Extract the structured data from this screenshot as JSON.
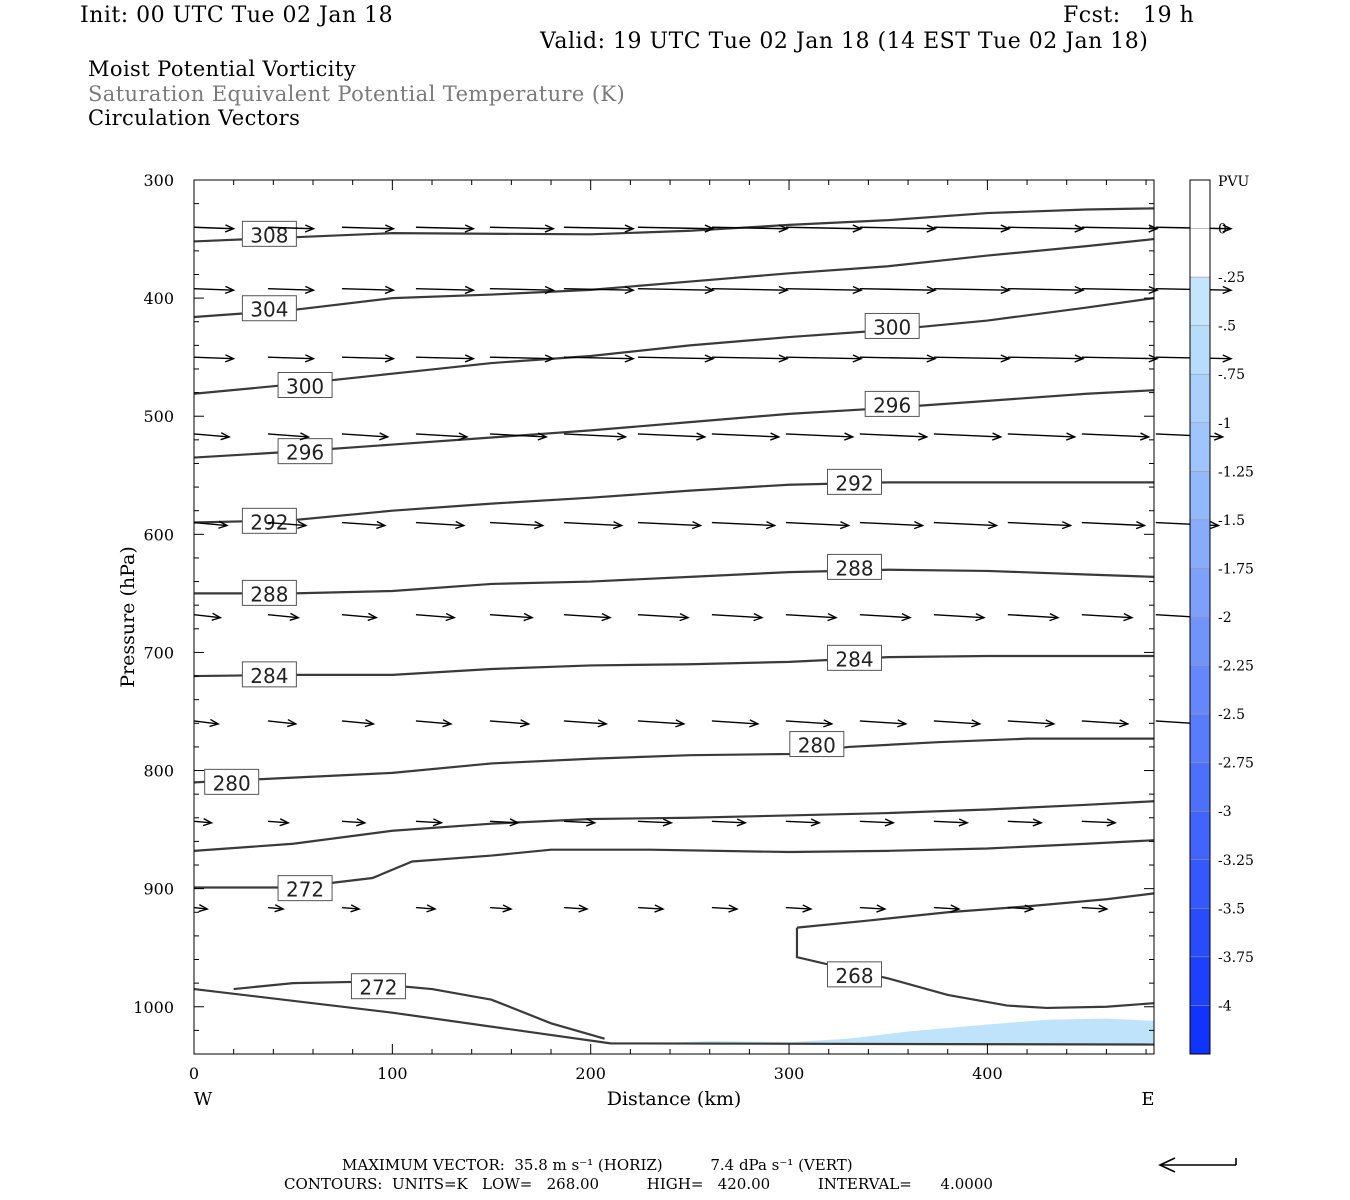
{
  "header": {
    "init": "Init: 00 UTC Tue 02 Jan 18",
    "fcst": "Fcst:   19 h",
    "valid": "Valid: 19 UTC Tue 02 Jan 18 (14 EST Tue 02 Jan 18)",
    "fields": [
      "Moist Potential Vorticity",
      "Saturation Equivalent Potential Temperature (K)",
      "Circulation Vectors"
    ]
  },
  "footer": {
    "max_vector": "MAXIMUM VECTOR:  35.8 m s⁻¹ (HORIZ)          7.4 dPa s⁻¹ (VERT)",
    "contours": "CONTOURS:  UNITS=K   LOW=   268.00          HIGH=   420.00          INTERVAL=      4.0000"
  },
  "colors": {
    "contour": "#3a3a3a",
    "vector": "#000000",
    "shading": "#bfe3fb"
  },
  "chart_data": {
    "type": "cross-section",
    "xlabel": "Distance (km)",
    "ylabel": "Pressure (hPa)",
    "xlim": [
      0,
      484
    ],
    "ylim": [
      300,
      1040
    ],
    "x_ticks": [
      0,
      100,
      200,
      300,
      400
    ],
    "x_tick_labels": [
      "0",
      "100",
      "200",
      "300",
      "400"
    ],
    "y_ticks": [
      300,
      400,
      500,
      600,
      700,
      800,
      900,
      1000
    ],
    "y_tick_labels": [
      "300",
      "400",
      "500",
      "600",
      "700",
      "800",
      "900",
      "1000"
    ],
    "west_label": "W",
    "east_label": "E",
    "colorbar": {
      "unit": "PVU",
      "labels": [
        "0",
        "-.25",
        "-.5",
        "-.75",
        "-1",
        "-1.25",
        "-1.5",
        "-1.75",
        "-2",
        "-2.25",
        "-2.5",
        "-2.75",
        "-3",
        "-3.25",
        "-3.5",
        "-3.75",
        "-4"
      ],
      "colors": [
        "#ffffff",
        "#ffffff",
        "#c4e6fc",
        "#b8dcfc",
        "#acd0fc",
        "#a0c4fc",
        "#94b8fc",
        "#88acfc",
        "#7ca0fc",
        "#7094fc",
        "#6488fc",
        "#587cfc",
        "#4c70fc",
        "#4064fc",
        "#3458fc",
        "#284cfc",
        "#1c40fc",
        "#1034fc"
      ]
    },
    "contours": [
      {
        "label": "308",
        "label_at": [
          38,
          346
        ],
        "points": [
          [
            0,
            352
          ],
          [
            100,
            345
          ],
          [
            200,
            346
          ],
          [
            250,
            343
          ],
          [
            300,
            338
          ],
          [
            350,
            334
          ],
          [
            400,
            328
          ],
          [
            450,
            325
          ],
          [
            484,
            324
          ]
        ]
      },
      {
        "label": "",
        "label_at": null,
        "points": [
          [
            0,
            416
          ],
          [
            50,
            410
          ],
          [
            100,
            400
          ],
          [
            150,
            397
          ],
          [
            200,
            393
          ],
          [
            250,
            386
          ],
          [
            300,
            379
          ],
          [
            350,
            373
          ],
          [
            400,
            364
          ],
          [
            450,
            356
          ],
          [
            484,
            350
          ]
        ]
      },
      {
        "label": "304",
        "label_at": [
          38,
          409
        ],
        "points": []
      },
      {
        "label": "300",
        "label_at": [
          352,
          424
        ],
        "points": [
          [
            0,
            481
          ],
          [
            50,
            473
          ],
          [
            100,
            464
          ],
          [
            150,
            455
          ],
          [
            200,
            449
          ],
          [
            250,
            440
          ],
          [
            300,
            433
          ],
          [
            350,
            427
          ],
          [
            400,
            419
          ],
          [
            450,
            408
          ],
          [
            484,
            400
          ]
        ]
      },
      {
        "label": "300",
        "label_at": [
          56,
          474
        ],
        "points": []
      },
      {
        "label": "296",
        "label_at": [
          352,
          490
        ],
        "points": [
          [
            0,
            535
          ],
          [
            50,
            530
          ],
          [
            100,
            524
          ],
          [
            150,
            518
          ],
          [
            200,
            512
          ],
          [
            250,
            505
          ],
          [
            300,
            498
          ],
          [
            350,
            493
          ],
          [
            400,
            487
          ],
          [
            450,
            481
          ],
          [
            484,
            478
          ]
        ]
      },
      {
        "label": "296",
        "label_at": [
          56,
          530
        ],
        "points": []
      },
      {
        "label": "292",
        "label_at": [
          333,
          556
        ],
        "points": [
          [
            0,
            590
          ],
          [
            50,
            588
          ],
          [
            100,
            580
          ],
          [
            150,
            574
          ],
          [
            200,
            569
          ],
          [
            250,
            563
          ],
          [
            300,
            558
          ],
          [
            350,
            556
          ],
          [
            400,
            556
          ],
          [
            450,
            556
          ],
          [
            484,
            556
          ]
        ]
      },
      {
        "label": "292",
        "label_at": [
          38,
          589
        ],
        "points": []
      },
      {
        "label": "288",
        "label_at": [
          333,
          628
        ],
        "points": [
          [
            0,
            650
          ],
          [
            50,
            650
          ],
          [
            100,
            648
          ],
          [
            150,
            642
          ],
          [
            200,
            640
          ],
          [
            250,
            636
          ],
          [
            300,
            632
          ],
          [
            350,
            630
          ],
          [
            400,
            631
          ],
          [
            450,
            634
          ],
          [
            484,
            636
          ]
        ]
      },
      {
        "label": "288",
        "label_at": [
          38,
          650
        ],
        "points": []
      },
      {
        "label": "284",
        "label_at": [
          333,
          705
        ],
        "points": [
          [
            0,
            720
          ],
          [
            50,
            719
          ],
          [
            100,
            719
          ],
          [
            150,
            714
          ],
          [
            200,
            711
          ],
          [
            250,
            710
          ],
          [
            300,
            708
          ],
          [
            350,
            704
          ],
          [
            400,
            703
          ],
          [
            450,
            703
          ],
          [
            484,
            703
          ]
        ]
      },
      {
        "label": "284",
        "label_at": [
          38,
          719
        ],
        "points": []
      },
      {
        "label": "280",
        "label_at": [
          314,
          778
        ],
        "points": [
          [
            0,
            810
          ],
          [
            50,
            806
          ],
          [
            100,
            802
          ],
          [
            150,
            794
          ],
          [
            200,
            790
          ],
          [
            250,
            787
          ],
          [
            300,
            786
          ],
          [
            330,
            780
          ],
          [
            375,
            776
          ],
          [
            420,
            773
          ],
          [
            484,
            773
          ]
        ]
      },
      {
        "label": "280",
        "label_at": [
          19,
          810
        ],
        "points": []
      },
      {
        "label": "",
        "label_at": null,
        "points": [
          [
            0,
            868
          ],
          [
            50,
            862
          ],
          [
            100,
            851
          ],
          [
            150,
            845
          ],
          [
            200,
            841
          ],
          [
            250,
            840
          ],
          [
            300,
            838
          ],
          [
            350,
            836
          ],
          [
            400,
            833
          ],
          [
            450,
            829
          ],
          [
            484,
            826
          ]
        ]
      },
      {
        "label": "272",
        "label_at": [
          56,
          900
        ],
        "points": [
          [
            0,
            899
          ],
          [
            50,
            899
          ],
          [
            90,
            891
          ],
          [
            110,
            877
          ],
          [
            150,
            872
          ],
          [
            180,
            867
          ],
          [
            230,
            867
          ],
          [
            300,
            869
          ],
          [
            350,
            868
          ],
          [
            400,
            866
          ],
          [
            450,
            862
          ],
          [
            484,
            859
          ]
        ]
      },
      {
        "label": "268",
        "label_at": [
          333,
          973
        ],
        "points": [
          [
            304,
            933
          ],
          [
            304,
            958
          ],
          [
            350,
            976
          ],
          [
            380,
            990
          ],
          [
            410,
            999
          ],
          [
            430,
            1001
          ],
          [
            460,
            1000
          ],
          [
            484,
            997
          ]
        ]
      },
      {
        "label": "",
        "label_at": null,
        "points": [
          [
            304,
            933
          ],
          [
            340,
            927
          ],
          [
            380,
            920
          ],
          [
            420,
            915
          ],
          [
            460,
            909
          ],
          [
            484,
            904
          ]
        ]
      },
      {
        "label": "272",
        "label_at": [
          93,
          983
        ],
        "points": [
          [
            20,
            985
          ],
          [
            50,
            980
          ],
          [
            80,
            979
          ],
          [
            120,
            985
          ],
          [
            150,
            994
          ],
          [
            180,
            1014
          ],
          [
            207,
            1027
          ]
        ]
      },
      {
        "label": "",
        "label_at": null,
        "points": [
          [
            0,
            985
          ],
          [
            100,
            1005
          ],
          [
            210,
            1031
          ],
          [
            484,
            1032
          ]
        ]
      }
    ],
    "shaded_region": {
      "pv": "-0.25 to -0.5",
      "points": [
        [
          232,
          1031
        ],
        [
          260,
          1029
        ],
        [
          300,
          1030
        ],
        [
          330,
          1027
        ],
        [
          360,
          1021
        ],
        [
          400,
          1015
        ],
        [
          430,
          1011
        ],
        [
          460,
          1010
        ],
        [
          484,
          1012
        ],
        [
          484,
          1032
        ],
        [
          232,
          1032
        ]
      ]
    },
    "vector_rows": [
      {
        "p": 340,
        "dx": 18,
        "dy": 1
      },
      {
        "p": 392,
        "dx": 18,
        "dy": 1
      },
      {
        "p": 450,
        "dx": 18,
        "dy": 1
      },
      {
        "p": 515,
        "dx": 16,
        "dy": 2
      },
      {
        "p": 590,
        "dx": 15,
        "dy": 2
      },
      {
        "p": 668,
        "dx": 12,
        "dy": 2
      },
      {
        "p": 758,
        "dx": 11,
        "dy": 2
      },
      {
        "p": 843,
        "dx": 8,
        "dy": 1
      },
      {
        "p": 916,
        "dx": 6,
        "dy": 1
      }
    ]
  }
}
